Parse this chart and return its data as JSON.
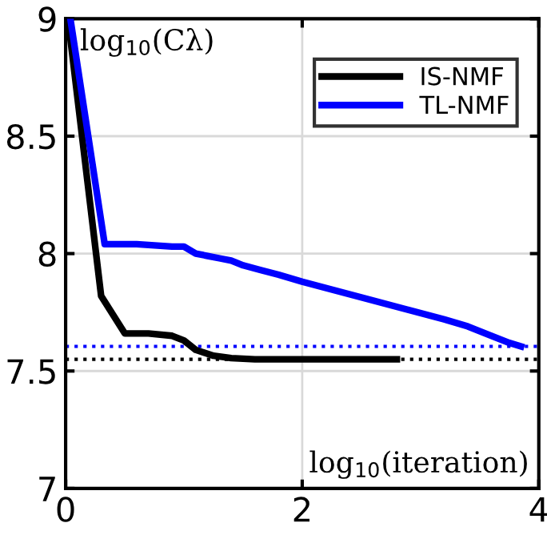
{
  "chart_data": {
    "type": "line",
    "xlabel": "log$_{10}$(iteration)",
    "ylabel": "log$_{10}$(Cλ)",
    "xlim": [
      0,
      4
    ],
    "ylim": [
      7,
      9
    ],
    "xticks": [
      0,
      2,
      4
    ],
    "yticks": [
      7,
      7.5,
      8,
      8.5,
      9
    ],
    "grid": true,
    "legend": "top right",
    "line_style": "solid",
    "marker": "none",
    "series": [
      {
        "name": "IS-NMF",
        "color": "#000000",
        "x": [
          0.02,
          0.3,
          0.5,
          0.7,
          0.9,
          1.0,
          1.1,
          1.25,
          1.4,
          1.6,
          2.0,
          2.8
        ],
        "values": [
          9.0,
          7.82,
          7.66,
          7.66,
          7.65,
          7.63,
          7.59,
          7.565,
          7.555,
          7.55,
          7.55,
          7.55
        ]
      },
      {
        "name": "TL-NMF",
        "color": "#0000ff",
        "x": [
          0.04,
          0.33,
          0.6,
          0.9,
          1.0,
          1.1,
          1.2,
          1.3,
          1.4,
          1.5,
          1.65,
          1.8,
          2.0,
          2.3,
          2.6,
          2.9,
          3.2,
          3.4,
          3.6,
          3.75,
          3.85
        ],
        "values": [
          9.0,
          8.04,
          8.04,
          8.03,
          8.03,
          8.0,
          7.99,
          7.98,
          7.97,
          7.95,
          7.93,
          7.91,
          7.88,
          7.84,
          7.8,
          7.76,
          7.72,
          7.69,
          7.65,
          7.62,
          7.605
        ]
      }
    ],
    "ref_lines": [
      {
        "axis": "y",
        "value": 7.605,
        "color": "#0000ff",
        "line_style": "dotted"
      },
      {
        "axis": "y",
        "value": 7.55,
        "color": "#000000",
        "line_style": "dotted"
      }
    ]
  }
}
